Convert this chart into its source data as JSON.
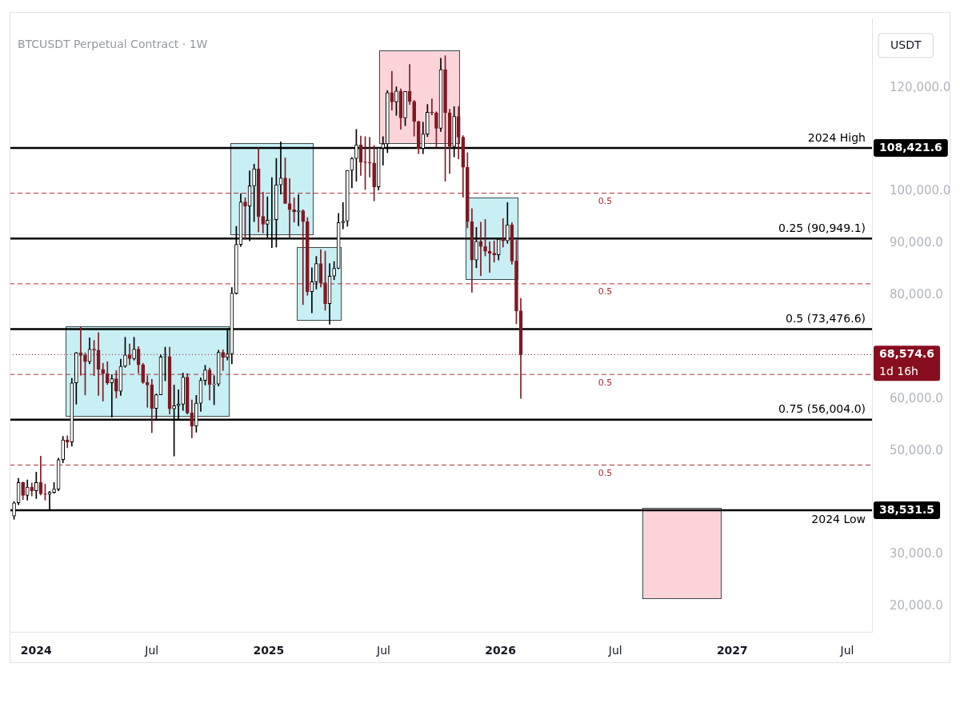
{
  "chart_data": {
    "type": "candlestick",
    "title": "BTCUSDT Perpetual Contract · 1W",
    "ylabel": "USDT",
    "x": [
      "2023-11-27",
      "2023-12-04",
      "2023-12-11",
      "2023-12-18",
      "2023-12-25",
      "2024-01-01",
      "2024-01-08",
      "2024-01-15",
      "2024-01-22",
      "2024-01-29",
      "2024-02-05",
      "2024-02-12",
      "2024-02-19",
      "2024-02-26",
      "2024-03-04",
      "2024-03-11",
      "2024-03-18",
      "2024-03-25",
      "2024-04-01",
      "2024-04-08",
      "2024-04-15",
      "2024-04-22",
      "2024-04-29",
      "2024-05-06",
      "2024-05-13",
      "2024-05-20",
      "2024-05-27",
      "2024-06-03",
      "2024-06-10",
      "2024-06-17",
      "2024-06-24",
      "2024-07-01",
      "2024-07-08",
      "2024-07-15",
      "2024-07-22",
      "2024-07-29",
      "2024-08-05",
      "2024-08-12",
      "2024-08-19",
      "2024-08-26",
      "2024-09-02",
      "2024-09-09",
      "2024-09-16",
      "2024-09-23",
      "2024-09-30",
      "2024-10-07",
      "2024-10-14",
      "2024-10-21",
      "2024-10-28",
      "2024-11-04",
      "2024-11-11",
      "2024-11-18",
      "2024-11-25",
      "2024-12-02",
      "2024-12-09",
      "2024-12-16",
      "2024-12-23",
      "2024-12-30",
      "2025-01-06",
      "2025-01-13",
      "2025-01-20",
      "2025-01-27",
      "2025-02-03",
      "2025-02-10",
      "2025-02-17",
      "2025-02-24",
      "2025-03-03",
      "2025-03-10",
      "2025-03-17",
      "2025-03-24",
      "2025-03-31",
      "2025-04-07",
      "2025-04-14",
      "2025-04-21",
      "2025-04-28",
      "2025-05-05",
      "2025-05-12",
      "2025-05-19",
      "2025-05-26",
      "2025-06-02",
      "2025-06-09",
      "2025-06-16",
      "2025-06-23",
      "2025-06-30",
      "2025-07-07",
      "2025-07-14",
      "2025-07-21",
      "2025-07-28",
      "2025-08-04",
      "2025-08-11",
      "2025-08-18",
      "2025-08-25",
      "2025-09-01",
      "2025-09-08",
      "2025-09-15",
      "2025-09-22",
      "2025-09-29",
      "2025-10-06",
      "2025-10-13",
      "2025-10-20",
      "2025-10-27",
      "2025-11-03",
      "2025-11-10",
      "2025-11-17",
      "2025-11-24",
      "2025-12-01",
      "2025-12-08",
      "2025-12-15",
      "2025-12-22",
      "2025-12-29",
      "2026-01-05",
      "2026-01-12",
      "2026-01-19",
      "2026-01-26",
      "2026-02-02"
    ],
    "ohlc": [
      [
        37450,
        40250,
        36800,
        39970
      ],
      [
        39970,
        44700,
        39600,
        43900
      ],
      [
        43900,
        44000,
        40600,
        41400
      ],
      [
        41400,
        44400,
        40500,
        43000
      ],
      [
        43000,
        43800,
        41300,
        42300
      ],
      [
        42300,
        45900,
        40800,
        43900
      ],
      [
        43900,
        49000,
        41500,
        41700
      ],
      [
        41700,
        43600,
        40500,
        41600
      ],
      [
        41600,
        42200,
        38531.5,
        42000
      ],
      [
        42000,
        43900,
        41800,
        42600
      ],
      [
        42600,
        48600,
        42300,
        48300
      ],
      [
        48300,
        52800,
        47700,
        52100
      ],
      [
        52100,
        52900,
        50600,
        51700
      ],
      [
        51700,
        64000,
        50900,
        63100
      ],
      [
        63100,
        69000,
        59000,
        68900
      ],
      [
        68900,
        73800,
        64600,
        68400
      ],
      [
        68400,
        68900,
        60800,
        67200
      ],
      [
        67200,
        71800,
        66800,
        69600
      ],
      [
        69600,
        71300,
        64500,
        69400
      ],
      [
        69400,
        72800,
        60700,
        65700
      ],
      [
        65700,
        66900,
        59600,
        64900
      ],
      [
        64900,
        67200,
        62800,
        63100
      ],
      [
        63100,
        64700,
        56500,
        63900
      ],
      [
        63900,
        65500,
        60200,
        61500
      ],
      [
        61500,
        67700,
        60700,
        66300
      ],
      [
        66300,
        71900,
        66100,
        68500
      ],
      [
        68500,
        70600,
        66600,
        67800
      ],
      [
        67800,
        71900,
        67500,
        69600
      ],
      [
        69600,
        70100,
        65000,
        66600
      ],
      [
        66600,
        66900,
        63000,
        63200
      ],
      [
        63200,
        64500,
        58400,
        62700
      ],
      [
        62700,
        63800,
        53500,
        58200
      ],
      [
        58200,
        61000,
        56000,
        60800
      ],
      [
        60800,
        68500,
        60800,
        68100
      ],
      [
        68100,
        70000,
        63500,
        68200
      ],
      [
        68200,
        70000,
        57100,
        58100
      ],
      [
        58100,
        62700,
        49000,
        58700
      ],
      [
        58700,
        61800,
        56100,
        59000
      ],
      [
        59000,
        65000,
        57800,
        64200
      ],
      [
        64200,
        64900,
        57100,
        57300
      ],
      [
        57300,
        59800,
        52500,
        54800
      ],
      [
        54800,
        60700,
        53600,
        59200
      ],
      [
        59200,
        64100,
        57600,
        63600
      ],
      [
        63600,
        66500,
        62700,
        65600
      ],
      [
        65600,
        66000,
        59800,
        62800
      ],
      [
        62800,
        64500,
        58900,
        62900
      ],
      [
        62900,
        69400,
        62500,
        69000
      ],
      [
        69000,
        69500,
        65500,
        68000
      ],
      [
        68000,
        73600,
        67500,
        68700
      ],
      [
        68700,
        81500,
        66800,
        80400
      ],
      [
        80400,
        93300,
        80200,
        89800
      ],
      [
        89800,
        99600,
        89400,
        98000
      ],
      [
        98000,
        98800,
        90800,
        97200
      ],
      [
        97200,
        104000,
        90500,
        101100
      ],
      [
        101100,
        105300,
        94200,
        104400
      ],
      [
        104400,
        108421.6,
        92200,
        95200
      ],
      [
        95200,
        99900,
        92000,
        93700
      ],
      [
        93700,
        99000,
        91200,
        94500
      ],
      [
        94500,
        102700,
        89200,
        94600
      ],
      [
        94600,
        106400,
        89300,
        101300
      ],
      [
        101300,
        109600,
        99500,
        102600
      ],
      [
        102600,
        106500,
        97700,
        97700
      ],
      [
        97700,
        102500,
        91200,
        96500
      ],
      [
        96500,
        98800,
        94100,
        96100
      ],
      [
        96100,
        99400,
        93400,
        96300
      ],
      [
        96300,
        96500,
        78200,
        94200
      ],
      [
        94200,
        95000,
        80000,
        80700
      ],
      [
        80700,
        85300,
        76600,
        82600
      ],
      [
        82600,
        87500,
        81200,
        86100
      ],
      [
        86100,
        88800,
        81600,
        82400
      ],
      [
        82400,
        88500,
        77100,
        78400
      ],
      [
        78400,
        86100,
        74400,
        83700
      ],
      [
        83700,
        86500,
        83000,
        85200
      ],
      [
        85200,
        95800,
        85100,
        94000
      ],
      [
        94000,
        97900,
        92800,
        94300
      ],
      [
        94300,
        104100,
        93300,
        104100
      ],
      [
        104100,
        106600,
        100700,
        106400
      ],
      [
        106400,
        112000,
        102000,
        109000
      ],
      [
        109000,
        110700,
        103100,
        105700
      ],
      [
        105700,
        110600,
        100400,
        105600
      ],
      [
        105600,
        110500,
        102800,
        105500
      ],
      [
        105500,
        108900,
        98200,
        100900
      ],
      [
        100900,
        108500,
        100300,
        108400
      ],
      [
        108400,
        110600,
        105100,
        109200
      ],
      [
        109200,
        119500,
        107500,
        119100
      ],
      [
        119100,
        123200,
        115700,
        117300
      ],
      [
        117300,
        120200,
        114700,
        119400
      ],
      [
        119400,
        119800,
        112000,
        114200
      ],
      [
        114200,
        119300,
        112700,
        119300
      ],
      [
        119300,
        124500,
        116800,
        117400
      ],
      [
        117400,
        117600,
        110700,
        113500
      ],
      [
        113500,
        113600,
        107300,
        108300
      ],
      [
        108300,
        113400,
        107300,
        111100
      ],
      [
        111100,
        116800,
        110600,
        115300
      ],
      [
        115300,
        117900,
        114800,
        115200
      ],
      [
        115200,
        115400,
        108600,
        112200
      ],
      [
        112200,
        125700,
        111600,
        123500
      ],
      [
        123500,
        126200,
        102000,
        115200
      ],
      [
        115200,
        115900,
        103500,
        108700
      ],
      [
        108700,
        116400,
        106700,
        114500
      ],
      [
        114500,
        116400,
        106300,
        110500
      ],
      [
        110500,
        110800,
        98900,
        104700
      ],
      [
        104700,
        107500,
        93000,
        94200
      ],
      [
        94200,
        96700,
        80600,
        86800
      ],
      [
        86800,
        93100,
        85300,
        90400
      ],
      [
        90400,
        94100,
        83800,
        89400
      ],
      [
        89400,
        94600,
        87600,
        88500
      ],
      [
        88500,
        90300,
        84400,
        88100
      ],
      [
        88100,
        90500,
        86400,
        87800
      ],
      [
        87800,
        91000,
        86800,
        90800
      ],
      [
        90800,
        94800,
        89300,
        90500
      ],
      [
        90500,
        97900,
        90000,
        93600
      ],
      [
        93600,
        94000,
        86000,
        86600
      ],
      [
        86600,
        90600,
        74500,
        77000
      ],
      [
        77000,
        79400,
        60100,
        68574.6
      ]
    ],
    "xlim": [
      "2023-11-20",
      "2027-08-09"
    ],
    "xticks": [
      {
        "value": "2024-01-01",
        "label": "2024"
      },
      {
        "value": "2024-07-01",
        "label": "Jul"
      },
      {
        "value": "2025-01-01",
        "label": "2025"
      },
      {
        "value": "2025-07-01",
        "label": "Jul"
      },
      {
        "value": "2026-01-01",
        "label": "2026"
      },
      {
        "value": "2026-07-01",
        "label": "Jul"
      },
      {
        "value": "2027-01-01",
        "label": "2027"
      },
      {
        "value": "2027-07-01",
        "label": "Jul"
      }
    ],
    "ylim": [
      15100,
      133400
    ],
    "yticks": [
      {
        "value": 20000,
        "label": "20,000.0"
      },
      {
        "value": 30000,
        "label": "30,000.0"
      },
      {
        "value": 50000,
        "label": "50,000.0"
      },
      {
        "value": 60000,
        "label": "60,000.0"
      },
      {
        "value": 80000,
        "label": "80,000.0"
      },
      {
        "value": 90000,
        "label": "90,000.0"
      },
      {
        "value": 100000,
        "label": "100,000.0"
      },
      {
        "value": 120000,
        "label": "120,000.0"
      }
    ],
    "ref_lines": [
      {
        "axis": "y",
        "value": 108421.6,
        "label": "2024 High",
        "color": "#000000",
        "line_style": "solid"
      },
      {
        "axis": "y",
        "value": 90949.1,
        "label": "0.25 (90,949.1)",
        "color": "#000000",
        "line_style": "solid"
      },
      {
        "axis": "y",
        "value": 73476.6,
        "label": "0.5 (73,476.6)",
        "color": "#000000",
        "line_style": "solid"
      },
      {
        "axis": "y",
        "value": 56004.0,
        "label": "0.75 (56,004.0)",
        "color": "#000000",
        "line_style": "solid"
      },
      {
        "axis": "y",
        "value": 38531.5,
        "label": "2024 Low",
        "color": "#000000",
        "line_style": "solid"
      },
      {
        "axis": "y",
        "value": 99685.35,
        "color": "#b22833",
        "line_style": "dashed"
      },
      {
        "axis": "y",
        "value": 82212.85,
        "color": "#b22833",
        "line_style": "dashed"
      },
      {
        "axis": "y",
        "value": 64740.3,
        "color": "#b22833",
        "line_style": "dashed"
      },
      {
        "axis": "y",
        "value": 47267.75,
        "color": "#b22833",
        "line_style": "dashed"
      },
      {
        "axis": "y",
        "value": 68574.6,
        "color": "#880e1f",
        "line_style": "dotted"
      }
    ],
    "annotations": [
      {
        "text": "108,421.6",
        "x": "2027-08-09",
        "y": 108421.6
      },
      {
        "text": "38,531.5",
        "x": "2027-08-09",
        "y": 38531.5
      },
      {
        "text": "68,574.6",
        "x": "2027-08-09",
        "y": 68574.6
      },
      {
        "text": "1d 16h",
        "x": "2027-08-09",
        "y": 68574.6
      },
      {
        "text": "0.5",
        "x": "2026-06-15",
        "y": 99685.35
      },
      {
        "text": "0.5",
        "x": "2026-06-15",
        "y": 82212.85
      },
      {
        "text": "0.5",
        "x": "2026-06-15",
        "y": 64740.3
      },
      {
        "text": "0.5",
        "x": "2026-06-15",
        "y": 47267.75
      }
    ],
    "grid": false,
    "legend": false
  }
}
